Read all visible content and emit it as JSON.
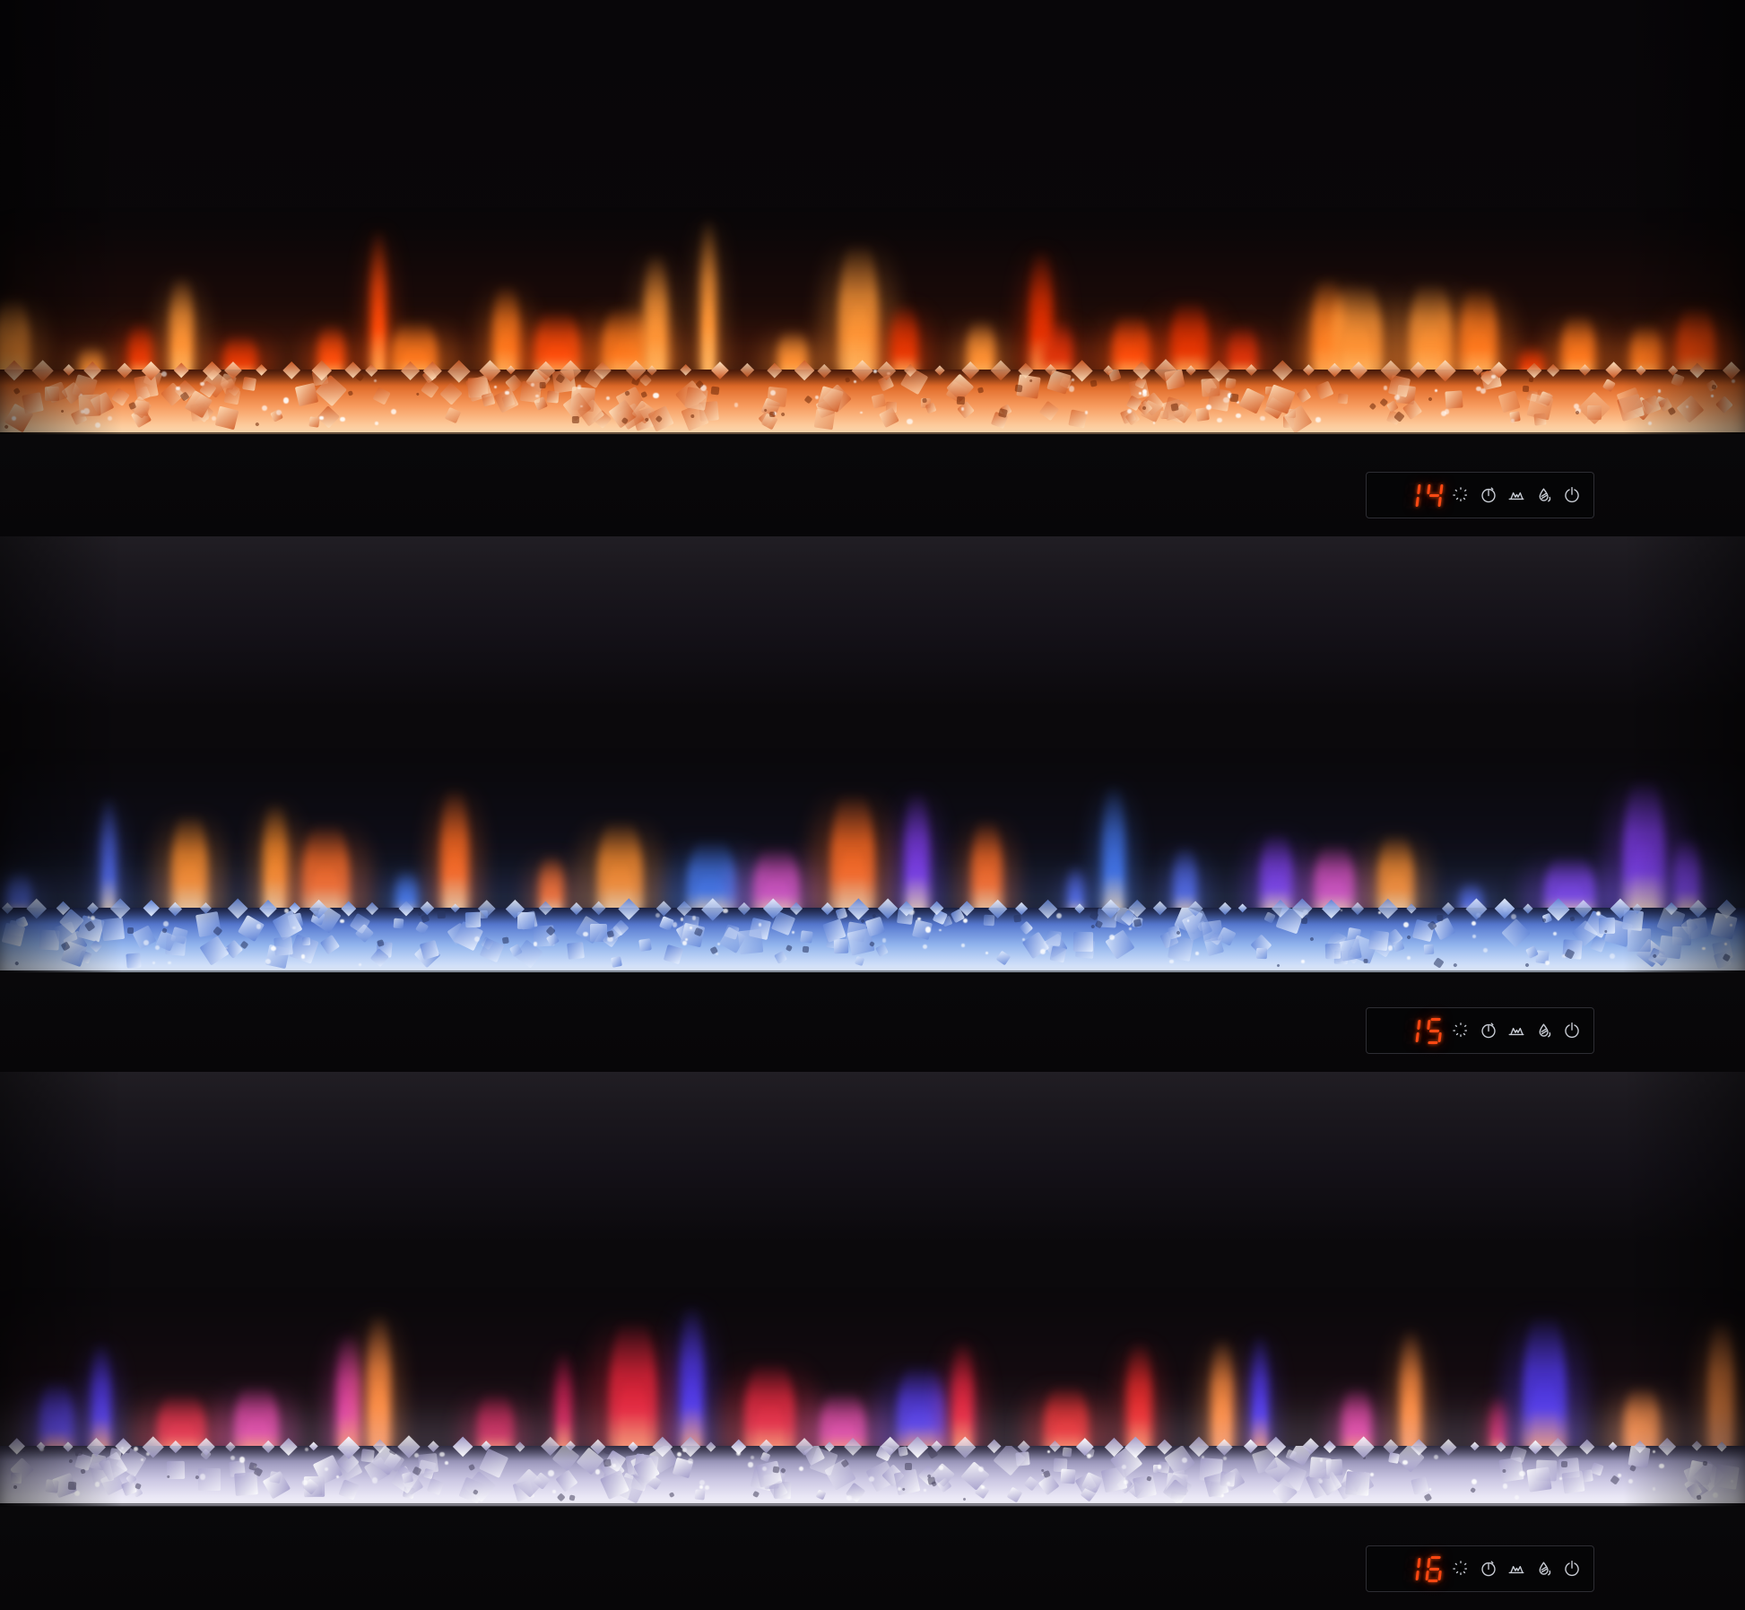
{
  "product_photo": {
    "description_tag": "three-flame-color-modes",
    "units": [
      {
        "name": "electric-fireplace-orange-mode",
        "display_value": "14",
        "flame_colors": [
          "#ff4808",
          "#ff7b1e",
          "#e63000",
          "#ff9838",
          "#d92a07"
        ],
        "flame_core": "#ffcf7a",
        "crystal_gradient": [
          "#6b2608",
          "#e06a28",
          "#f79b5e",
          "#ffdcb2"
        ],
        "facet_light": "#ffe3c0",
        "facet_dark": "#cf5a24",
        "glow": "#ff6a1c",
        "haze": "rgba(150,35,6,0.20)",
        "tray_edge": "rgba(255,205,150,0.38)"
      },
      {
        "name": "electric-fireplace-blue-crystal-mode",
        "display_value": "15",
        "flame_colors": [
          "#ff8c28",
          "#4a5fd8",
          "#d84ab8",
          "#7a3ae0",
          "#ff6a20",
          "#3f6fe0"
        ],
        "flame_core": "#ffd9a0",
        "crystal_gradient": [
          "#27335e",
          "#5577cf",
          "#8fb2ec",
          "#e2ecfd"
        ],
        "facet_light": "#eaf2ff",
        "facet_dark": "#5f82d6",
        "glow": "#6f96e8",
        "haze": "rgba(45,65,150,0.14)",
        "tray_edge": "rgba(185,198,215,0.75)"
      },
      {
        "name": "electric-fireplace-red-white-crystal-mode",
        "display_value": "16",
        "flame_colors": [
          "#e8243a",
          "#ef2a2a",
          "#e040a0",
          "#5038e8",
          "#ff8c40",
          "#c81e50"
        ],
        "flame_core": "#ff9a60",
        "crystal_gradient": [
          "#47445e",
          "#9b97bc",
          "#cac6e2",
          "#f6f4fd"
        ],
        "facet_light": "#ffffff",
        "facet_dark": "#a29cc9",
        "glow": "#cfc9ea",
        "haze": "rgba(140,40,70,0.12)",
        "tray_edge": "rgba(200,200,214,0.65)"
      }
    ],
    "control_icons": [
      {
        "key": "brightness",
        "name": "brightness-icon"
      },
      {
        "key": "timer",
        "name": "timer-icon"
      },
      {
        "key": "flame",
        "name": "flame-effect-icon"
      },
      {
        "key": "heater",
        "name": "heater-icon"
      },
      {
        "key": "power",
        "name": "power-icon"
      }
    ],
    "display_color": "#ff4a14",
    "icon_color": "#c9cdd5"
  }
}
